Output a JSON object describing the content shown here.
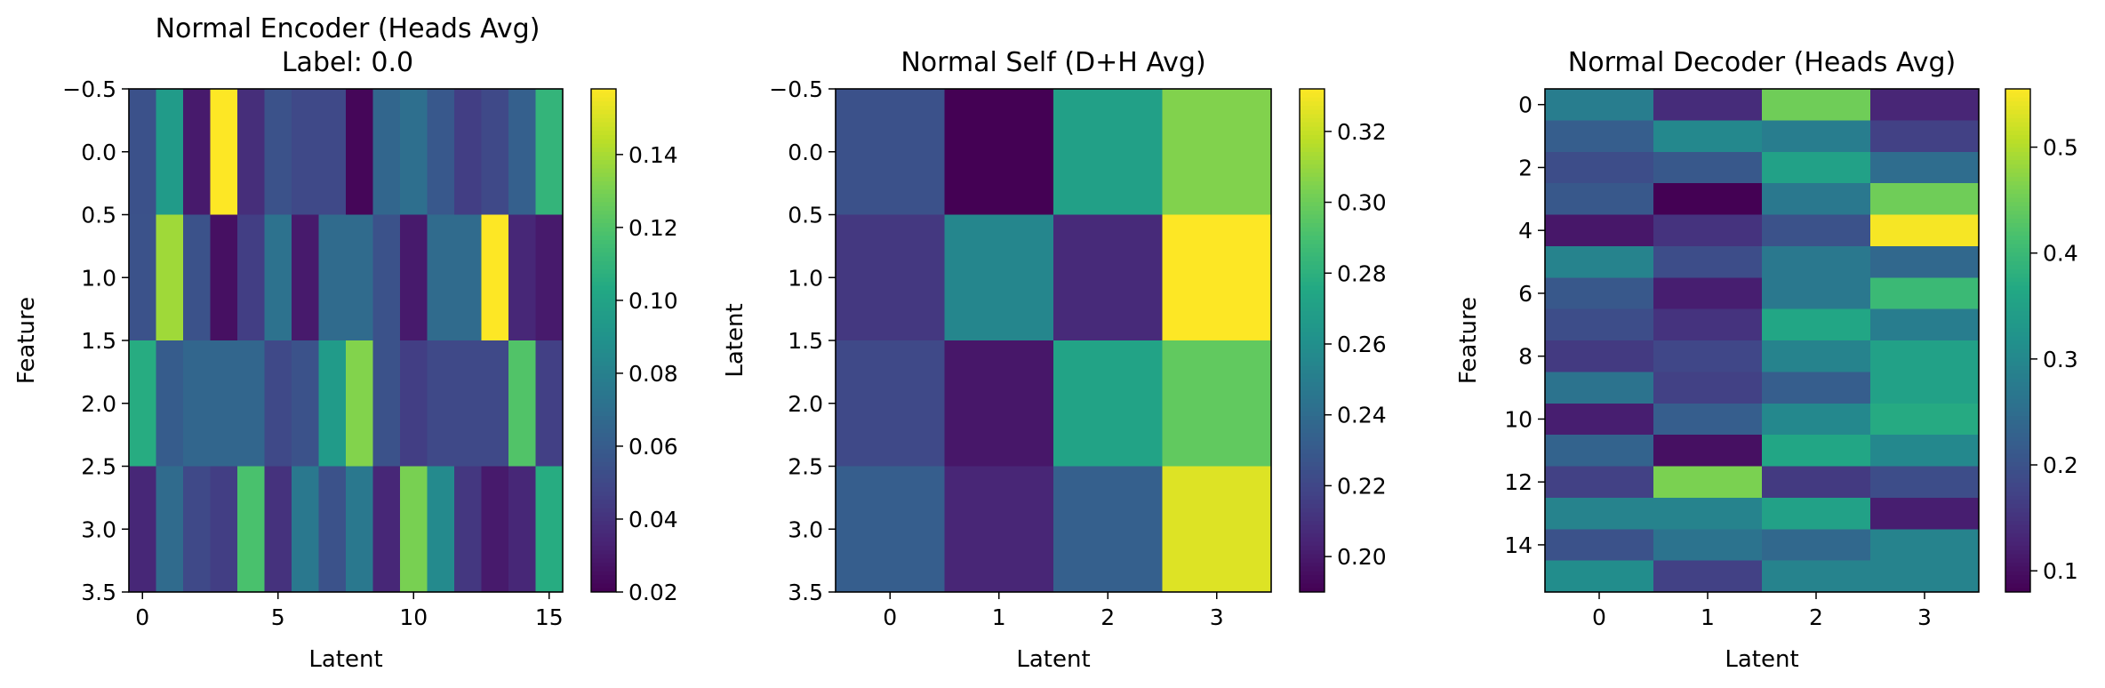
{
  "chart_data": [
    {
      "type": "heatmap",
      "title": "Normal Encoder (Heads Avg)",
      "subtitle": "Label: 0.0",
      "xlabel": "Latent",
      "ylabel": "Feature",
      "x_ticks": [
        "0",
        "5",
        "10",
        "15"
      ],
      "y_ticks": [
        "−0.5",
        "0.0",
        "0.5",
        "1.0",
        "1.5",
        "2.0",
        "2.5",
        "3.0",
        "3.5"
      ],
      "colorbar_ticks": [
        "0.02",
        "0.04",
        "0.06",
        "0.08",
        "0.10",
        "0.12",
        "0.14"
      ],
      "vmin": 0.02,
      "vmax": 0.158,
      "colormap": "viridis",
      "values": [
        [
          0.054,
          0.095,
          0.03,
          0.158,
          0.038,
          0.055,
          0.05,
          0.05,
          0.022,
          0.065,
          0.07,
          0.058,
          0.045,
          0.05,
          0.062,
          0.11
        ],
        [
          0.055,
          0.138,
          0.055,
          0.026,
          0.045,
          0.072,
          0.03,
          0.068,
          0.068,
          0.055,
          0.03,
          0.068,
          0.068,
          0.158,
          0.035,
          0.03
        ],
        [
          0.105,
          0.06,
          0.065,
          0.065,
          0.065,
          0.05,
          0.055,
          0.095,
          0.132,
          0.055,
          0.045,
          0.05,
          0.05,
          0.05,
          0.12,
          0.046
        ],
        [
          0.035,
          0.068,
          0.05,
          0.045,
          0.118,
          0.04,
          0.075,
          0.055,
          0.075,
          0.035,
          0.13,
          0.085,
          0.042,
          0.03,
          0.035,
          0.105
        ]
      ]
    },
    {
      "type": "heatmap",
      "title": "Normal Self (D+H Avg)",
      "xlabel": "Latent",
      "ylabel": "Latent",
      "x_ticks": [
        "0",
        "1",
        "2",
        "3"
      ],
      "y_ticks": [
        "−0.5",
        "0.0",
        "0.5",
        "1.0",
        "1.5",
        "2.0",
        "2.5",
        "3.0",
        "3.5"
      ],
      "colorbar_ticks": [
        "0.20",
        "0.22",
        "0.24",
        "0.26",
        "0.28",
        "0.30",
        "0.32"
      ],
      "vmin": 0.19,
      "vmax": 0.332,
      "colormap": "viridis",
      "values": [
        [
          0.225,
          0.19,
          0.27,
          0.305
        ],
        [
          0.213,
          0.255,
          0.207,
          0.332
        ],
        [
          0.221,
          0.199,
          0.272,
          0.297
        ],
        [
          0.232,
          0.205,
          0.233,
          0.325
        ]
      ]
    },
    {
      "type": "heatmap",
      "title": "Normal Decoder (Heads Avg)",
      "xlabel": "Latent",
      "ylabel": "Feature",
      "x_ticks": [
        "0",
        "1",
        "2",
        "3"
      ],
      "y_ticks": [
        "0",
        "2",
        "4",
        "6",
        "8",
        "10",
        "12",
        "14"
      ],
      "colorbar_ticks": [
        "0.1",
        "0.2",
        "0.3",
        "0.4",
        "0.5"
      ],
      "vmin": 0.08,
      "vmax": 0.555,
      "colormap": "viridis",
      "values": [
        [
          0.28,
          0.14,
          0.45,
          0.13
        ],
        [
          0.22,
          0.3,
          0.28,
          0.17
        ],
        [
          0.19,
          0.21,
          0.35,
          0.25
        ],
        [
          0.21,
          0.08,
          0.27,
          0.45
        ],
        [
          0.11,
          0.15,
          0.2,
          0.55
        ],
        [
          0.29,
          0.19,
          0.27,
          0.24
        ],
        [
          0.21,
          0.12,
          0.27,
          0.4
        ],
        [
          0.19,
          0.15,
          0.36,
          0.28
        ],
        [
          0.16,
          0.18,
          0.29,
          0.35
        ],
        [
          0.26,
          0.17,
          0.22,
          0.35
        ],
        [
          0.12,
          0.22,
          0.3,
          0.37
        ],
        [
          0.23,
          0.1,
          0.36,
          0.3
        ],
        [
          0.17,
          0.46,
          0.16,
          0.19
        ],
        [
          0.29,
          0.29,
          0.35,
          0.12
        ],
        [
          0.2,
          0.26,
          0.24,
          0.29
        ],
        [
          0.31,
          0.17,
          0.29,
          0.29
        ]
      ]
    }
  ]
}
